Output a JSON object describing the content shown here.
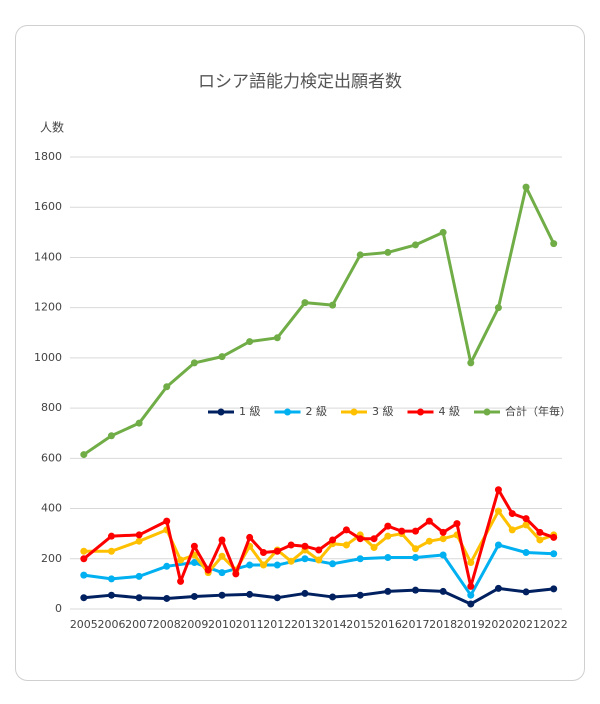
{
  "chart_data": {
    "type": "line",
    "title": "ロシア語能力検定出願者数",
    "ylabel": "人数",
    "xlim": [
      2004.5,
      2022.3
    ],
    "xticks": [
      2005,
      2006,
      2007,
      2008,
      2009,
      2010,
      2011,
      2012,
      2013,
      2014,
      2015,
      2016,
      2017,
      2018,
      2019,
      2020,
      2021,
      2022
    ],
    "ylim": [
      0,
      1800
    ],
    "yticks": [
      0,
      200,
      400,
      600,
      800,
      1000,
      1200,
      1400,
      1600,
      1800
    ],
    "grid": true,
    "series": [
      {
        "name": "1 級",
        "color": "#002060",
        "x": [
          2005,
          2006,
          2007,
          2008,
          2009,
          2010,
          2011,
          2012,
          2013,
          2014,
          2015,
          2016,
          2017,
          2018,
          2019,
          2020,
          2021,
          2022
        ],
        "values": [
          45,
          55,
          45,
          42,
          50,
          55,
          58,
          45,
          62,
          48,
          55,
          70,
          75,
          70,
          20,
          82,
          68,
          80
        ]
      },
      {
        "name": "2 級",
        "color": "#00b0f0",
        "x": [
          2005,
          2006,
          2007,
          2008,
          2009,
          2010,
          2011,
          2012,
          2013,
          2014,
          2015,
          2016,
          2017,
          2018,
          2019,
          2020,
          2021,
          2022
        ],
        "values": [
          135,
          120,
          130,
          170,
          185,
          145,
          175,
          175,
          200,
          180,
          200,
          205,
          205,
          215,
          55,
          255,
          225,
          220
        ]
      },
      {
        "name": "3 級",
        "color": "#ffc000",
        "x": [
          2005,
          2006,
          2007,
          2008,
          2008.5,
          2009,
          2009.5,
          2010,
          2010.5,
          2011,
          2011.5,
          2012,
          2012.5,
          2013,
          2013.5,
          2014,
          2014.5,
          2015,
          2015.5,
          2016,
          2016.5,
          2017,
          2017.5,
          2018,
          2018.5,
          2019,
          2020,
          2020.5,
          2021,
          2021.5,
          2022
        ],
        "values": [
          230,
          230,
          270,
          315,
          195,
          215,
          145,
          210,
          155,
          250,
          175,
          235,
          190,
          235,
          195,
          260,
          255,
          295,
          245,
          290,
          300,
          240,
          270,
          280,
          295,
          185,
          390,
          315,
          335,
          275,
          295
        ]
      },
      {
        "name": "4 級",
        "color": "#ff0000",
        "x": [
          2005,
          2006,
          2007,
          2008,
          2008.5,
          2009,
          2009.5,
          2010,
          2010.5,
          2011,
          2011.5,
          2012,
          2012.5,
          2013,
          2013.5,
          2014,
          2014.5,
          2015,
          2015.5,
          2016,
          2016.5,
          2017,
          2017.5,
          2018,
          2018.5,
          2019,
          2020,
          2020.5,
          2021,
          2021.5,
          2022
        ],
        "values": [
          200,
          290,
          295,
          350,
          110,
          250,
          155,
          275,
          140,
          285,
          225,
          230,
          255,
          250,
          235,
          275,
          315,
          280,
          280,
          330,
          310,
          310,
          350,
          305,
          340,
          90,
          475,
          380,
          360,
          305,
          285
        ]
      },
      {
        "name": "合計（年毎）",
        "color": "#70ad47",
        "x": [
          2005,
          2006,
          2007,
          2008,
          2009,
          2010,
          2011,
          2012,
          2013,
          2014,
          2015,
          2016,
          2017,
          2018,
          2019,
          2020,
          2021,
          2022
        ],
        "values": [
          615,
          690,
          740,
          885,
          980,
          1005,
          1065,
          1080,
          1220,
          1210,
          1410,
          1420,
          1450,
          1500,
          980,
          1200,
          1680,
          1455
        ]
      }
    ]
  }
}
